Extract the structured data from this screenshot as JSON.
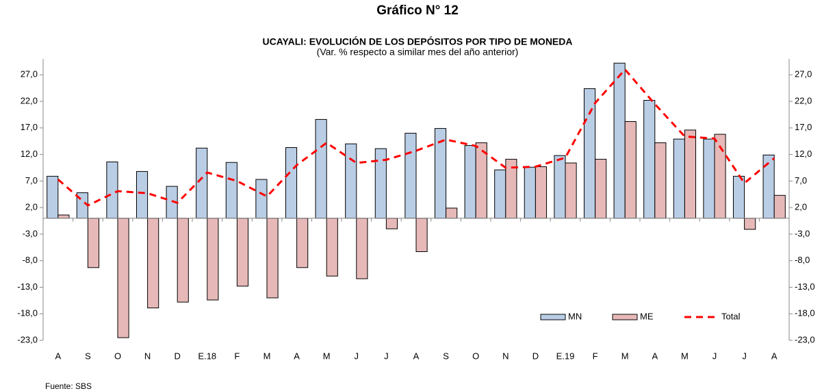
{
  "chart_data": {
    "type": "bar_line",
    "title": "Gráfico N° 12",
    "subtitle": "UCAYALI: EVOLUCIÓN DE LOS DEPÓSITOS POR TIPO DE MONEDA",
    "note": "(Var. % respecto a similar mes del año anterior)",
    "source": "Fuente: SBS",
    "categories": [
      "A",
      "S",
      "O",
      "N",
      "D",
      "E.18",
      "F",
      "M",
      "A",
      "M",
      "J",
      "J",
      "A",
      "S",
      "O",
      "N",
      "D",
      "E.19",
      "F",
      "M",
      "A",
      "M",
      "J",
      "J",
      "A"
    ],
    "series": [
      {
        "name": "MN",
        "type": "bar",
        "color": "#b9cde5",
        "values": [
          7.9,
          4.8,
          10.6,
          8.8,
          6.0,
          13.2,
          10.5,
          7.3,
          13.3,
          18.6,
          14.0,
          13.1,
          16.0,
          16.9,
          13.7,
          9.1,
          9.6,
          11.8,
          24.4,
          29.2,
          22.2,
          14.9,
          14.9,
          7.9,
          11.9
        ]
      },
      {
        "name": "ME",
        "type": "bar",
        "color": "#e6b9b8",
        "values": [
          0.6,
          -9.3,
          -22.5,
          -16.9,
          -15.8,
          -15.4,
          -12.8,
          -15.0,
          -9.3,
          -10.9,
          -11.4,
          -2.0,
          -6.3,
          1.9,
          14.2,
          11.1,
          9.7,
          10.4,
          11.1,
          18.2,
          14.2,
          16.6,
          15.8,
          -2.1,
          4.3
        ]
      },
      {
        "name": "Total",
        "type": "line",
        "color": "#ff0000",
        "values": [
          7.3,
          2.4,
          5.1,
          4.7,
          2.9,
          8.6,
          7.0,
          4.1,
          10.0,
          14.2,
          10.4,
          11.0,
          12.7,
          14.8,
          13.6,
          9.5,
          9.7,
          11.4,
          21.7,
          28.0,
          21.5,
          15.4,
          15.0,
          6.6,
          11.3
        ]
      }
    ],
    "ylim": [
      -23,
      30
    ],
    "yticks": [
      {
        "value": -23,
        "label": "-23,0"
      },
      {
        "value": -18,
        "label": "-18,0"
      },
      {
        "value": -13,
        "label": "-13,0"
      },
      {
        "value": -8,
        "label": "-8,0"
      },
      {
        "value": -3,
        "label": "-3,0"
      },
      {
        "value": 2,
        "label": "2,0"
      },
      {
        "value": 7,
        "label": "7,0"
      },
      {
        "value": 12,
        "label": "12,0"
      },
      {
        "value": 17,
        "label": "17,0"
      },
      {
        "value": 22,
        "label": "22,0"
      },
      {
        "value": 27,
        "label": "27,0"
      }
    ],
    "legend": "lower-right"
  }
}
